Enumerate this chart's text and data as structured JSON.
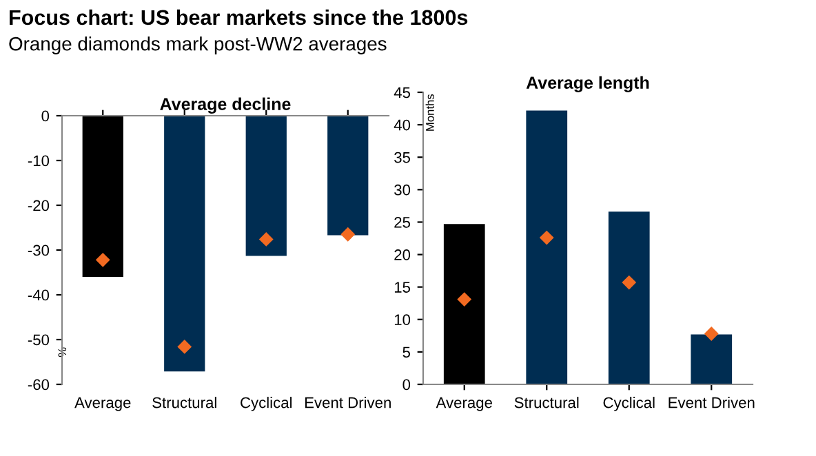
{
  "chart_data": [
    {
      "type": "bar",
      "title": "Average decline",
      "ylabel": "%",
      "categories": [
        "Average",
        "Structural",
        "Cyclical",
        "Event Driven"
      ],
      "series": [
        {
          "colors": [
            "#000000",
            "#002d52",
            "#002d52",
            "#002d52"
          ],
          "values": [
            -36,
            -57.1,
            -31.3,
            -26.7
          ]
        },
        {
          "type": "scatter",
          "color": "#f26a21",
          "marker": "diamond",
          "x": [
            "Average",
            "Structural",
            "Cyclical",
            "Event Driven"
          ],
          "values": [
            -32.2,
            -51.6,
            -27.6,
            -26.5
          ]
        }
      ],
      "ylim": [
        -60,
        0
      ],
      "yticks": [
        -60,
        -50,
        -40,
        -30,
        -20,
        -10,
        0
      ],
      "grid": false,
      "legend": false,
      "annotations": [
        "Focus chart: US bear markets since the 1800s",
        "Orange diamonds mark post-WW2 averages"
      ]
    },
    {
      "type": "bar",
      "title": "Average length",
      "ylabel": "Months",
      "categories": [
        "Average",
        "Structural",
        "Cyclical",
        "Event Driven"
      ],
      "series": [
        {
          "colors": [
            "#000000",
            "#002d52",
            "#002d52",
            "#002d52"
          ],
          "values": [
            24.7,
            42.2,
            26.6,
            7.7
          ]
        },
        {
          "type": "scatter",
          "color": "#f26a21",
          "marker": "diamond",
          "x": [
            "Average",
            "Structural",
            "Cyclical",
            "Event Driven"
          ],
          "values": [
            13.1,
            22.6,
            15.7,
            7.8
          ]
        }
      ],
      "ylim": [
        0,
        45
      ],
      "yticks": [
        0,
        5,
        10,
        15,
        20,
        25,
        30,
        35,
        40,
        45
      ],
      "grid": false,
      "legend": false
    }
  ]
}
